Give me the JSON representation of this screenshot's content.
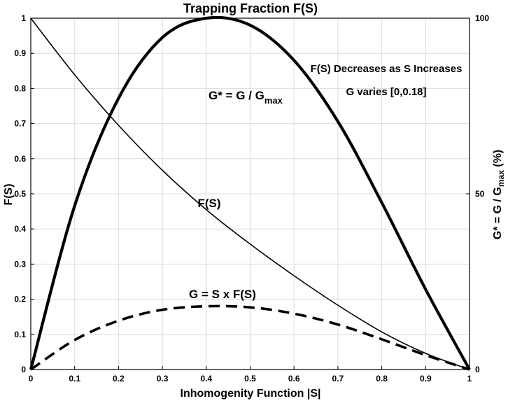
{
  "chart_data": {
    "type": "line",
    "title": "Trapping Fraction F(S)",
    "xlabel": "Inhomogenity Function |S|",
    "ylabel_left": "F(S)",
    "ylabel_right": {
      "main": "G* = G / G",
      "sub": "max",
      "tail": " (%)"
    },
    "xlim": [
      0,
      1
    ],
    "ylim_left": [
      0,
      1
    ],
    "ylim_right": [
      0,
      100
    ],
    "x_ticks": [
      "0",
      "0.1",
      "0.2",
      "0.3",
      "0.4",
      "0.5",
      "0.6",
      "0.7",
      "0.8",
      "0.9",
      "1"
    ],
    "y_ticks_left": [
      "0",
      "0.1",
      "0.2",
      "0.3",
      "0.4",
      "0.5",
      "0.6",
      "0.7",
      "0.8",
      "0.9",
      "1"
    ],
    "y_ticks_right": [
      "0",
      "50",
      "100"
    ],
    "grid": true,
    "x": [
      0,
      0.1,
      0.2,
      0.3,
      0.4,
      0.5,
      0.6,
      0.7,
      0.8,
      0.9,
      1.0
    ],
    "series": [
      {
        "name": "F(S)",
        "axis": "left",
        "style": "thin",
        "values": [
          1.0,
          0.839,
          0.695,
          0.567,
          0.455,
          0.357,
          0.267,
          0.183,
          0.107,
          0.046,
          0.0
        ]
      },
      {
        "name": "G* = G / Gmax",
        "axis": "right",
        "style": "thick",
        "values": [
          0,
          46.6,
          77.2,
          94.5,
          100,
          98.0,
          88.0,
          70.6,
          47.5,
          22.8,
          0
        ]
      },
      {
        "name": "G = S x F(S)",
        "axis": "left",
        "style": "dashed",
        "values": [
          0,
          0.084,
          0.139,
          0.17,
          0.18,
          0.177,
          0.159,
          0.128,
          0.086,
          0.041,
          0.0
        ]
      }
    ],
    "annotations": {
      "f_label": "F(S)",
      "g_label": "G = S x F(S)",
      "gstar_main": "G* = G / G",
      "gstar_sub": "max",
      "note_1": "F(S) Decreases as S Increases",
      "note_2": "G varies [0,0.18]"
    }
  }
}
